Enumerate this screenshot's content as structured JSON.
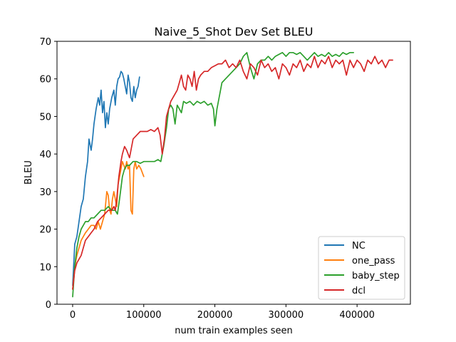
{
  "chart_data": {
    "type": "line",
    "title": "Naive_5_Shot Dev Set BLEU",
    "xlabel": "num train examples seen",
    "ylabel": "BLEU",
    "xlim": [
      -22000,
      475000
    ],
    "ylim": [
      0,
      70
    ],
    "xticks": [
      0,
      100000,
      200000,
      300000,
      400000
    ],
    "xtick_labels": [
      "0",
      "100000",
      "200000",
      "300000",
      "400000"
    ],
    "yticks": [
      0,
      10,
      20,
      30,
      40,
      50,
      60,
      70
    ],
    "ytick_labels": [
      "0",
      "10",
      "20",
      "30",
      "40",
      "50",
      "60",
      "70"
    ],
    "grid": false,
    "legend_position": "lower-right",
    "series": [
      {
        "name": "NC",
        "color": "#1f77b4",
        "x": [
          0,
          3000,
          6000,
          9000,
          12000,
          15000,
          18000,
          21000,
          23000,
          26000,
          28000,
          30000,
          33000,
          36000,
          38000,
          40000,
          42000,
          44000,
          46000,
          48000,
          50000,
          52000,
          55000,
          58000,
          60000,
          62000,
          64000,
          66000,
          68000,
          70000,
          72000,
          74000,
          76000,
          78000,
          80000,
          82000,
          84000,
          86000,
          88000,
          90000,
          92000,
          94000
        ],
        "y": [
          5,
          16,
          18,
          22,
          26,
          28,
          34,
          38,
          44,
          41,
          44,
          48,
          52,
          55,
          53,
          57,
          51,
          54,
          47,
          51,
          48,
          52,
          55,
          57,
          53,
          58,
          60,
          60.5,
          62,
          61.5,
          60,
          58,
          56,
          61,
          59,
          55,
          54,
          58,
          55,
          57,
          58,
          60.5
        ]
      },
      {
        "name": "one_pass",
        "color": "#ff7f0e",
        "x": [
          0,
          3000,
          6000,
          9000,
          12000,
          15000,
          18000,
          22000,
          26000,
          30000,
          33000,
          36000,
          39000,
          42000,
          45000,
          48000,
          50000,
          52000,
          54000,
          56000,
          58000,
          60000,
          62000,
          64000,
          66000,
          68000,
          70000,
          72000,
          74000,
          76000,
          78000,
          80000,
          82000,
          84000,
          86000,
          88000,
          90000,
          93000,
          96000,
          100000
        ],
        "y": [
          4,
          10,
          13,
          15,
          17,
          18,
          19,
          20,
          21,
          21,
          20,
          22,
          20,
          22,
          24,
          30,
          29,
          25,
          24,
          28,
          30,
          28,
          26,
          32,
          34,
          36,
          38,
          37,
          36,
          38,
          36,
          37,
          25,
          24,
          36,
          38,
          36,
          37,
          36,
          34
        ]
      },
      {
        "name": "baby_step",
        "color": "#2ca02c",
        "x": [
          0,
          3000,
          6000,
          9000,
          12000,
          15000,
          18000,
          22000,
          26000,
          30000,
          35000,
          40000,
          45000,
          50000,
          55000,
          60000,
          63000,
          66000,
          70000,
          73000,
          76000,
          80000,
          85000,
          90000,
          95000,
          100000,
          105000,
          110000,
          115000,
          120000,
          124000,
          128000,
          132000,
          135000,
          138000,
          141000,
          144000,
          147000,
          150000,
          153000,
          156000,
          160000,
          165000,
          170000,
          175000,
          180000,
          185000,
          190000,
          195000,
          198000,
          200000,
          203000,
          206000,
          210000,
          215000,
          220000,
          225000,
          230000,
          235000,
          240000,
          245000,
          250000,
          255000,
          260000,
          265000,
          270000,
          275000,
          280000,
          285000,
          290000,
          295000,
          300000,
          305000,
          310000,
          315000,
          320000,
          325000,
          330000,
          335000,
          340000,
          345000,
          350000,
          355000,
          360000,
          365000,
          370000,
          375000,
          380000,
          385000,
          390000,
          395000
        ],
        "y": [
          2,
          10,
          15,
          18,
          20,
          21,
          22,
          22,
          23,
          23,
          24,
          25,
          25,
          26,
          25,
          25,
          24,
          28,
          34,
          36,
          37,
          37,
          38,
          38,
          37.5,
          38,
          38,
          38,
          38,
          38.5,
          38,
          42,
          47,
          52,
          53,
          52,
          48,
          53,
          52,
          51,
          54,
          53.5,
          54,
          53,
          54,
          53.5,
          54,
          53,
          53.5,
          52,
          47.5,
          52,
          55,
          59,
          60,
          61,
          62,
          63,
          64,
          66,
          67,
          63,
          60,
          64,
          65,
          65,
          66,
          65,
          66,
          66.5,
          67,
          66,
          67,
          67,
          66.5,
          67,
          66,
          65,
          66,
          67,
          66,
          66.5,
          66,
          67,
          66,
          66.5,
          66,
          67,
          66.5,
          67,
          67
        ]
      },
      {
        "name": "dcl",
        "color": "#d62728",
        "x": [
          0,
          3000,
          6000,
          9000,
          12000,
          15000,
          18000,
          22000,
          26000,
          30000,
          35000,
          40000,
          45000,
          50000,
          55000,
          58000,
          60000,
          62000,
          65000,
          68000,
          70000,
          73000,
          76000,
          80000,
          85000,
          90000,
          95000,
          100000,
          105000,
          110000,
          115000,
          120000,
          123000,
          126000,
          129000,
          132000,
          135000,
          138000,
          141000,
          144000,
          147000,
          150000,
          153000,
          156000,
          159000,
          162000,
          165000,
          168000,
          171000,
          174000,
          177000,
          180000,
          185000,
          190000,
          195000,
          200000,
          205000,
          210000,
          215000,
          220000,
          225000,
          230000,
          235000,
          240000,
          245000,
          250000,
          255000,
          260000,
          265000,
          270000,
          275000,
          280000,
          285000,
          290000,
          295000,
          300000,
          305000,
          310000,
          315000,
          320000,
          325000,
          330000,
          335000,
          340000,
          345000,
          350000,
          355000,
          360000,
          365000,
          370000,
          375000,
          380000,
          385000,
          390000,
          395000,
          400000,
          405000,
          410000,
          415000,
          420000,
          425000,
          430000,
          435000,
          440000,
          445000,
          450000
        ],
        "y": [
          4,
          9,
          11,
          12,
          13,
          15,
          17,
          18,
          19,
          20,
          22,
          23,
          24,
          25,
          25,
          26,
          25,
          28,
          34,
          38,
          40,
          42,
          41,
          39,
          44,
          45,
          46,
          46,
          46,
          46.5,
          46,
          47,
          45,
          40,
          44,
          50,
          52,
          54,
          55,
          56,
          57,
          59,
          61,
          58,
          57,
          61,
          60,
          58,
          62,
          57,
          60,
          61,
          62,
          62,
          63,
          63.5,
          64,
          64,
          65,
          63,
          64,
          63,
          65,
          62,
          60,
          64,
          63,
          61,
          65,
          63,
          64,
          62,
          63,
          60,
          64,
          63,
          61,
          64,
          63,
          65,
          62,
          64,
          63,
          66,
          63,
          65,
          64,
          66,
          63,
          65,
          64,
          65,
          61,
          65,
          63,
          65,
          64,
          62,
          65,
          64,
          66,
          64,
          65,
          63,
          65,
          65
        ]
      }
    ]
  }
}
